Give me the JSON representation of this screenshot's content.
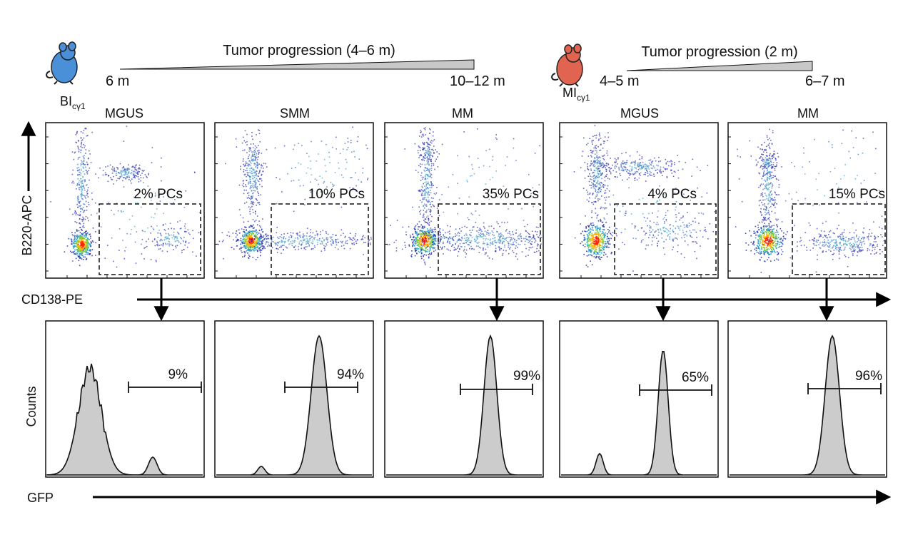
{
  "models": [
    {
      "strain": "BI",
      "strain_sub": "cγ1",
      "mouse_color": "#4a90d9",
      "progression_label": "Tumor progression (4–6 m)",
      "start": "6 m",
      "end": "10–12 m"
    },
    {
      "strain": "MI",
      "strain_sub": "cγ1",
      "mouse_color": "#e06450",
      "progression_label": "Tumor progression (2 m)",
      "start": "4–5 m",
      "end": "6–7 m"
    }
  ],
  "panels": [
    {
      "stage": "MGUS",
      "pc_label": "2% PCs",
      "gfp_label": "9%"
    },
    {
      "stage": "SMM",
      "pc_label": "10% PCs",
      "gfp_label": "94%"
    },
    {
      "stage": "MM",
      "pc_label": "35% PCs",
      "gfp_label": "99%"
    },
    {
      "stage": "MGUS",
      "pc_label": "4% PCs",
      "gfp_label": "65%"
    },
    {
      "stage": "MM",
      "pc_label": "15% PCs",
      "gfp_label": "96%"
    }
  ],
  "axes": {
    "flow_y": "B220-APC",
    "flow_x": "CD138-PE",
    "hist_y": "Counts",
    "hist_x": "GFP"
  },
  "colors": {
    "hist_fill": "#cccccc",
    "density_low": "#2a2ab4",
    "density_high": "#ff1e00"
  }
}
